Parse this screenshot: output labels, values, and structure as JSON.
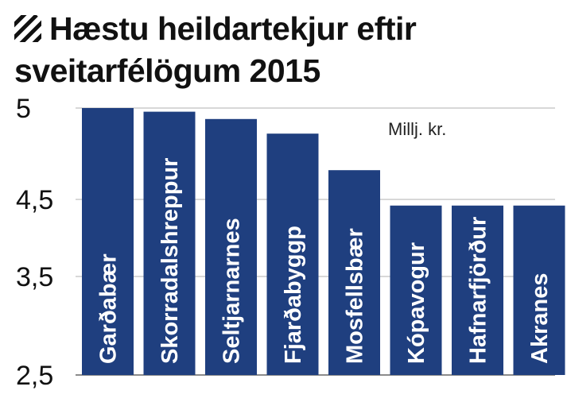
{
  "title": "Hæstu heildartekjur eftir sveitarfélögum 2015",
  "title_icon": "diagonal-stripes-icon",
  "colors": {
    "bar": "#1f3f7f",
    "grid": "#cccccc",
    "text": "#111111"
  },
  "chart_data": {
    "type": "bar",
    "title": "Hæstu heildartekjur eftir sveitarfélögum 2015",
    "unit_label": "Millj. kr.",
    "categories": [
      "Garðabær",
      "Skorradalshreppur",
      "Seltjarnarnes",
      "Fjarðabyggp",
      "Mosfellsbær",
      "Kópavogur",
      "Hafnarfjörður",
      "Akranes"
    ],
    "values": [
      5.0,
      4.98,
      4.94,
      4.86,
      4.66,
      4.42,
      4.42,
      4.42
    ],
    "y_ticks": [
      {
        "value": 5.0,
        "label": "5"
      },
      {
        "value": 4.5,
        "label": "4,5"
      },
      {
        "value": 3.5,
        "label": "3,5"
      },
      {
        "value": 2.5,
        "label": "2,5"
      }
    ],
    "y_axis_break": "non-linear",
    "orientation": "vertical",
    "bar_labels_rotated": true,
    "grid": true
  }
}
